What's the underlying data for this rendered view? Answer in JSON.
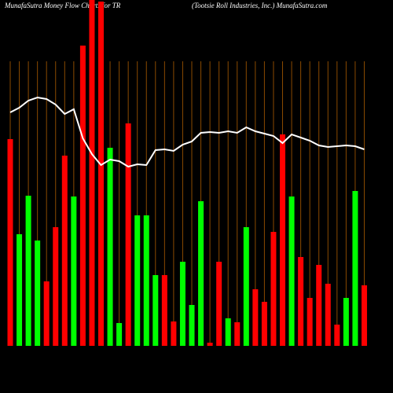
{
  "chart_data": {
    "type": "bar",
    "title": "MunafaSutra  Money Flow  Charts for TR",
    "subtitle": "(Tootsie   Roll Industries, Inc.) MunafaSutra.com",
    "ylim": [
      0,
      440
    ],
    "grid": true,
    "grid_color": "#8a4a00",
    "values": [
      263,
      142,
      191,
      134,
      82,
      151,
      242,
      190,
      382,
      450,
      438,
      252,
      29,
      283,
      166,
      166,
      90,
      90,
      31,
      107,
      52,
      184,
      4,
      107,
      35,
      30,
      151,
      72,
      56,
      145,
      269,
      190,
      113,
      61,
      103,
      79,
      27,
      61,
      197,
      77
    ],
    "colors": [
      "#ff0000",
      "#00ff00",
      "#00ff00",
      "#00ff00",
      "#ff0000",
      "#ff0000",
      "#ff0000",
      "#00ff00",
      "#ff0000",
      "#ff0000",
      "#ff0000",
      "#00ff00",
      "#00ff00",
      "#ff0000",
      "#00ff00",
      "#00ff00",
      "#00ff00",
      "#ff0000",
      "#ff0000",
      "#00ff00",
      "#00ff00",
      "#00ff00",
      "#ff0000",
      "#ff0000",
      "#00ff00",
      "#ff0000",
      "#00ff00",
      "#ff0000",
      "#ff0000",
      "#ff0000",
      "#ff0000",
      "#00ff00",
      "#ff0000",
      "#ff0000",
      "#ff0000",
      "#ff0000",
      "#ff0000",
      "#00ff00",
      "#00ff00",
      "#ff0000"
    ],
    "line": {
      "color": "#ffffff",
      "values": [
        297,
        303,
        312,
        316,
        314,
        307,
        295,
        301,
        264,
        244,
        230,
        237,
        235,
        228,
        231,
        230,
        249,
        250,
        248,
        256,
        260,
        271,
        272,
        271,
        273,
        271,
        278,
        273,
        270,
        267,
        258,
        269,
        265,
        261,
        255,
        253,
        254,
        255,
        254,
        250
      ]
    }
  }
}
